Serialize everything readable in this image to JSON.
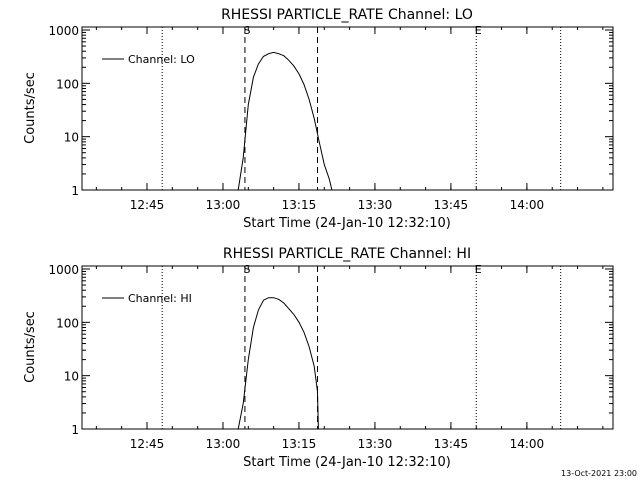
{
  "chart_data": [
    {
      "type": "line",
      "title": "RHESSI PARTICLE_RATE Channel: LO",
      "xlabel": "Start Time (24-Jan-10 12:32:10)",
      "ylabel": "Counts/sec",
      "x_ticks": [
        "12:45",
        "13:00",
        "13:15",
        "13:30",
        "13:45",
        "14:00"
      ],
      "y_ticks": [
        "1",
        "10",
        "100",
        "1000"
      ],
      "xlim": [
        "12:32:10",
        "14:17:00"
      ],
      "ylim": [
        1,
        1000
      ],
      "y_scale": "log",
      "legend": {
        "placement": "top-left",
        "entries": [
          "Channel: LO"
        ]
      },
      "markers": [
        {
          "label": "S",
          "time": "13:04:20",
          "style": "dashed"
        },
        {
          "label": "",
          "time": "13:18:40",
          "style": "dashed"
        },
        {
          "label": "",
          "time": "12:48:00",
          "style": "dotted"
        },
        {
          "label": "E",
          "time": "13:50:00",
          "style": "dotted"
        },
        {
          "label": "",
          "time": "14:06:40",
          "style": "dotted"
        }
      ],
      "series": [
        {
          "name": "Channel: LO",
          "x": [
            "13:03:00",
            "13:04:00",
            "13:05:00",
            "13:06:00",
            "13:07:00",
            "13:08:00",
            "13:09:00",
            "13:10:00",
            "13:11:00",
            "13:12:00",
            "13:13:00",
            "13:14:00",
            "13:15:00",
            "13:16:00",
            "13:17:00",
            "13:18:00",
            "13:19:00",
            "13:20:00",
            "13:21:00",
            "13:21:30"
          ],
          "y": [
            1,
            4,
            40,
            130,
            230,
            320,
            360,
            380,
            360,
            330,
            270,
            210,
            150,
            95,
            50,
            22,
            8,
            3,
            1.6,
            1
          ]
        }
      ]
    },
    {
      "type": "line",
      "title": "RHESSI PARTICLE_RATE Channel: HI",
      "xlabel": "Start Time (24-Jan-10 12:32:10)",
      "ylabel": "Counts/sec",
      "x_ticks": [
        "12:45",
        "13:00",
        "13:15",
        "13:30",
        "13:45",
        "14:00"
      ],
      "y_ticks": [
        "1",
        "10",
        "100",
        "1000"
      ],
      "xlim": [
        "12:32:10",
        "14:17:00"
      ],
      "ylim": [
        1,
        1000
      ],
      "y_scale": "log",
      "legend": {
        "placement": "top-left",
        "entries": [
          "Channel: HI"
        ]
      },
      "markers": [
        {
          "label": "S",
          "time": "13:04:20",
          "style": "dashed"
        },
        {
          "label": "",
          "time": "13:18:40",
          "style": "dashed"
        },
        {
          "label": "",
          "time": "12:48:00",
          "style": "dotted"
        },
        {
          "label": "E",
          "time": "13:50:00",
          "style": "dotted"
        },
        {
          "label": "",
          "time": "14:06:40",
          "style": "dotted"
        }
      ],
      "series": [
        {
          "name": "Channel: HI",
          "x": [
            "13:03:00",
            "13:04:00",
            "13:05:00",
            "13:06:00",
            "13:07:00",
            "13:08:00",
            "13:09:00",
            "13:10:00",
            "13:11:00",
            "13:12:00",
            "13:13:00",
            "13:14:00",
            "13:15:00",
            "13:16:00",
            "13:17:00",
            "13:18:00",
            "13:18:40",
            "13:18:50"
          ],
          "y": [
            1,
            3,
            20,
            80,
            170,
            260,
            290,
            290,
            270,
            230,
            180,
            140,
            100,
            65,
            35,
            15,
            5,
            1
          ]
        }
      ]
    }
  ],
  "footer": {
    "timestamp": "13-Oct-2021 23:00"
  }
}
